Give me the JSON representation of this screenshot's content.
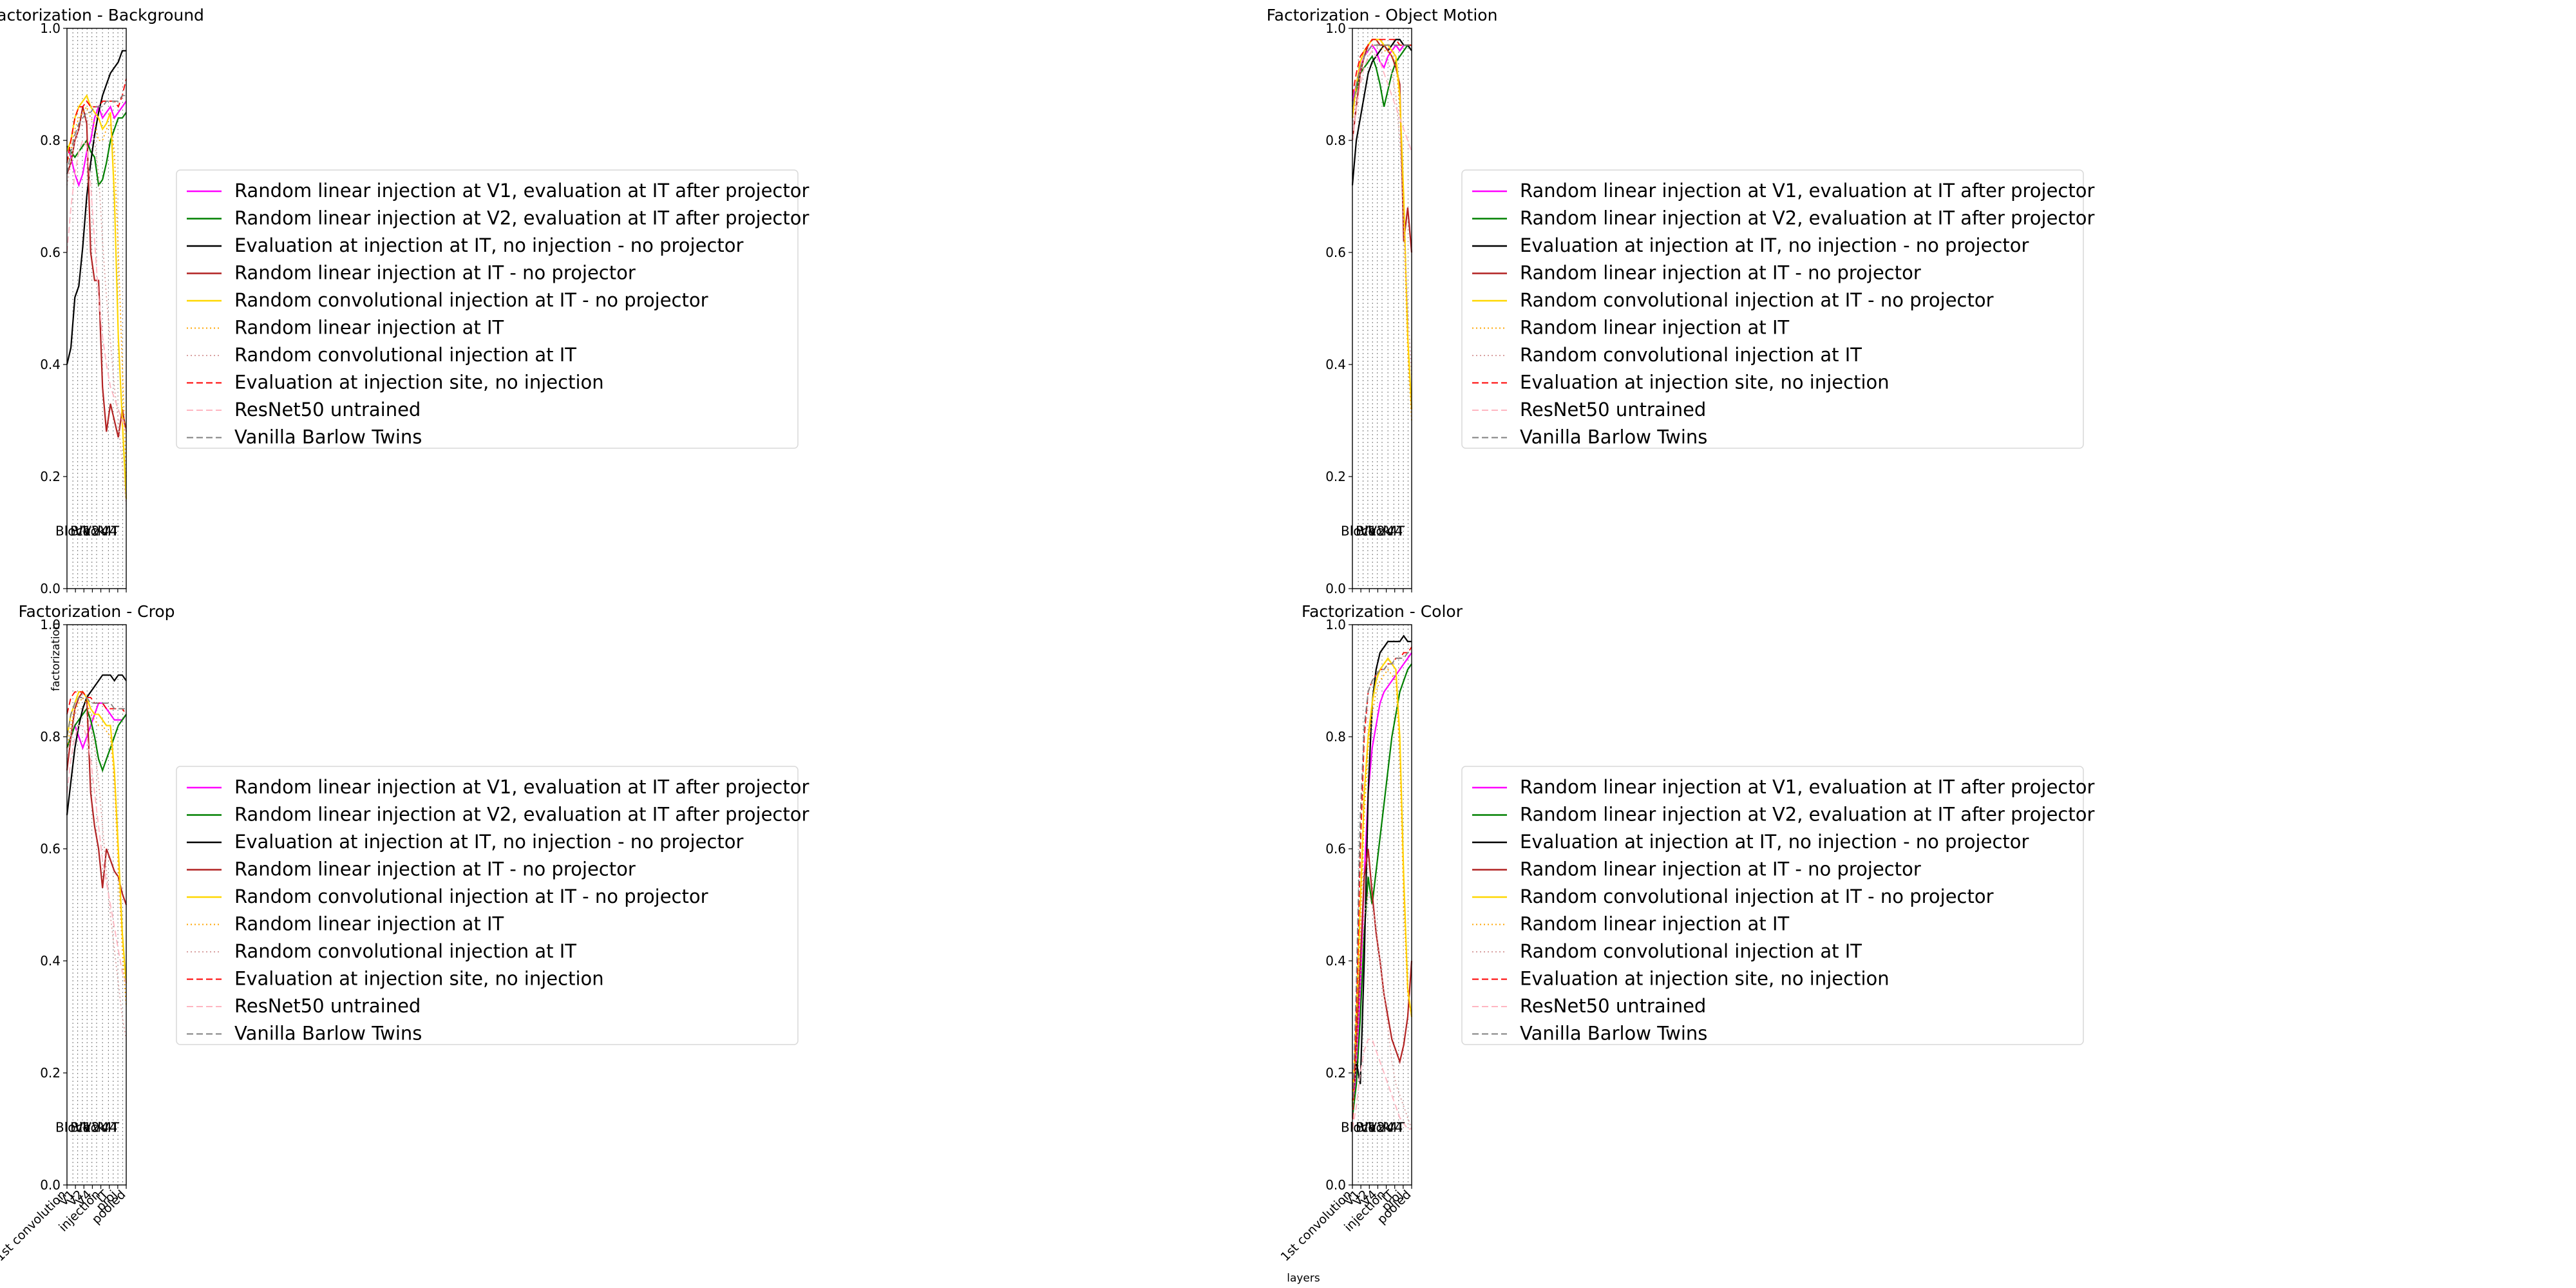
{
  "figure": {
    "xlabel": "layers",
    "ylabel": "factorization"
  },
  "legend_entries": [
    {
      "label": "Random linear injection at V1, evaluation at IT after projector",
      "color": "#ff00ff",
      "dash": "solid"
    },
    {
      "label": "Random linear injection at V2, evaluation at IT after projector",
      "color": "#008000",
      "dash": "solid"
    },
    {
      "label": "Evaluation at injection at IT, no injection - no projector",
      "color": "#000000",
      "dash": "solid"
    },
    {
      "label": "Random linear injection at IT - no projector",
      "color": "#b22222",
      "dash": "solid"
    },
    {
      "label": "Random convolutional injection at IT - no projector",
      "color": "#ffd700",
      "dash": "solid"
    },
    {
      "label": "Random linear injection at IT",
      "color": "#ffa500",
      "dash": "dotted"
    },
    {
      "label": "Random convolutional injection at IT",
      "color": "#d8a0a0",
      "dash": "dotted"
    },
    {
      "label": "Evaluation at injection site, no injection",
      "color": "#ff0000",
      "dash": "dashed"
    },
    {
      "label": "ResNet50 untrained",
      "color": "#ffb6c1",
      "dash": "dashed"
    },
    {
      "label": "Vanilla Barlow Twins",
      "color": "#808080",
      "dash": "dashed"
    }
  ],
  "chart_data": [
    {
      "type": "line",
      "title": "Factorization - Background",
      "ylim": [
        0,
        1
      ],
      "yticks": [
        "0.0",
        "0.2",
        "0.4",
        "0.6",
        "0.8",
        "1.0"
      ],
      "region_labels": [
        "Block",
        "V1",
        "V2",
        "V4",
        "IT"
      ],
      "xticklabels": [],
      "grid": "vertical dotted lines at layer boundaries",
      "legend_placement": "right",
      "series": [
        {
          "values": [
            0.79,
            0.77,
            0.74,
            0.72,
            0.74,
            0.78,
            0.8,
            0.84,
            0.86,
            0.84,
            0.85,
            0.86,
            0.84,
            0.85,
            0.86,
            0.87
          ]
        },
        {
          "values": [
            0.79,
            0.78,
            0.77,
            0.78,
            0.79,
            0.8,
            0.78,
            0.77,
            0.72,
            0.73,
            0.76,
            0.8,
            0.82,
            0.84,
            0.84,
            0.85
          ]
        },
        {
          "values": [
            0.4,
            0.43,
            0.52,
            0.54,
            0.61,
            0.7,
            0.76,
            0.81,
            0.85,
            0.88,
            0.9,
            0.92,
            0.93,
            0.94,
            0.96,
            0.96
          ]
        },
        {
          "values": [
            0.74,
            0.76,
            0.8,
            0.82,
            0.86,
            0.83,
            0.6,
            0.55,
            0.55,
            0.36,
            0.28,
            0.33,
            0.3,
            0.27,
            0.32,
            0.28
          ]
        },
        {
          "values": [
            0.78,
            0.8,
            0.84,
            0.86,
            0.87,
            0.88,
            0.86,
            0.85,
            0.84,
            0.82,
            0.83,
            0.85,
            0.7,
            0.45,
            0.3,
            0.16
          ]
        },
        {
          "values": [
            0.76,
            0.78,
            0.82,
            0.84,
            0.85,
            0.86,
            0.84,
            0.83,
            0.8,
            0.8,
            0.82,
            0.83,
            0.78,
            0.6,
            0.4,
            0.2
          ]
        },
        {
          "values": [
            0.72,
            0.76,
            0.8,
            0.82,
            0.83,
            0.84,
            0.82,
            0.8,
            0.74,
            0.62,
            0.52,
            0.44,
            0.36,
            0.3,
            0.22,
            0.15
          ]
        },
        {
          "values": [
            0.76,
            0.8,
            0.84,
            0.86,
            0.86,
            0.87,
            0.86,
            0.86,
            0.86,
            0.87,
            0.87,
            0.87,
            0.87,
            0.86,
            0.88,
            0.91
          ]
        },
        {
          "values": [
            0.6,
            0.68,
            0.74,
            0.78,
            0.8,
            0.79,
            0.72,
            0.62,
            0.52,
            0.45,
            0.4,
            0.36,
            0.34,
            0.32,
            0.3,
            0.28
          ]
        },
        {
          "values": [
            0.74,
            0.78,
            0.81,
            0.83,
            0.84,
            0.85,
            0.85,
            0.86,
            0.86,
            0.86,
            0.87,
            0.87,
            0.87,
            0.87,
            0.88,
            0.88
          ]
        }
      ]
    },
    {
      "type": "line",
      "title": "Factorization - Object Motion",
      "ylim": [
        0,
        1
      ],
      "yticks": [
        "0.0",
        "0.2",
        "0.4",
        "0.6",
        "0.8",
        "1.0"
      ],
      "region_labels": [
        "Block",
        "V1",
        "V2",
        "V4",
        "IT"
      ],
      "xticklabels": [],
      "grid": "vertical dotted lines at layer boundaries",
      "legend_placement": "right",
      "series": [
        {
          "values": [
            0.87,
            0.9,
            0.93,
            0.95,
            0.96,
            0.97,
            0.96,
            0.94,
            0.93,
            0.95,
            0.96,
            0.97,
            0.96,
            0.97,
            0.97,
            0.97
          ]
        },
        {
          "values": [
            0.86,
            0.89,
            0.92,
            0.93,
            0.94,
            0.95,
            0.93,
            0.9,
            0.86,
            0.89,
            0.92,
            0.94,
            0.95,
            0.96,
            0.97,
            0.97
          ]
        },
        {
          "values": [
            0.72,
            0.8,
            0.84,
            0.88,
            0.92,
            0.94,
            0.95,
            0.96,
            0.97,
            0.96,
            0.97,
            0.98,
            0.98,
            0.97,
            0.97,
            0.96
          ]
        },
        {
          "values": [
            0.8,
            0.86,
            0.92,
            0.95,
            0.97,
            0.98,
            0.98,
            0.97,
            0.97,
            0.96,
            0.95,
            0.93,
            0.9,
            0.62,
            0.68,
            0.6
          ]
        },
        {
          "values": [
            0.84,
            0.9,
            0.94,
            0.96,
            0.97,
            0.98,
            0.98,
            0.98,
            0.97,
            0.97,
            0.96,
            0.95,
            0.88,
            0.7,
            0.45,
            0.32
          ]
        },
        {
          "values": [
            0.85,
            0.9,
            0.94,
            0.96,
            0.97,
            0.97,
            0.97,
            0.97,
            0.96,
            0.96,
            0.95,
            0.94,
            0.86,
            0.66,
            0.42,
            0.3
          ]
        },
        {
          "values": [
            0.82,
            0.88,
            0.92,
            0.95,
            0.96,
            0.97,
            0.97,
            0.96,
            0.95,
            0.94,
            0.92,
            0.88,
            0.8,
            0.65,
            0.5,
            0.38
          ]
        },
        {
          "values": [
            0.88,
            0.92,
            0.95,
            0.96,
            0.97,
            0.98,
            0.98,
            0.98,
            0.98,
            0.98,
            0.98,
            0.98,
            0.97,
            0.97,
            0.97,
            0.97
          ]
        },
        {
          "values": [
            0.8,
            0.86,
            0.9,
            0.93,
            0.95,
            0.96,
            0.95,
            0.94,
            0.92,
            0.9,
            0.88,
            0.86,
            0.84,
            0.82,
            0.8,
            0.78
          ]
        },
        {
          "values": [
            0.86,
            0.9,
            0.93,
            0.95,
            0.96,
            0.97,
            0.97,
            0.97,
            0.97,
            0.97,
            0.97,
            0.97,
            0.97,
            0.97,
            0.97,
            0.97
          ]
        }
      ]
    },
    {
      "type": "line",
      "title": "Factorization - Crop",
      "ylim": [
        0,
        1
      ],
      "yticks": [
        "0.0",
        "0.2",
        "0.4",
        "0.6",
        "0.8",
        "1.0"
      ],
      "region_labels": [
        "Block",
        "V1",
        "V2",
        "V4",
        "IT"
      ],
      "xticklabels": [
        "1st convolution",
        "V1",
        "V2",
        "V4",
        "injection",
        "IT",
        "proj",
        "pooled"
      ],
      "grid": "vertical dotted lines at layer boundaries",
      "legend_placement": "right",
      "series": [
        {
          "values": [
            0.78,
            0.8,
            0.82,
            0.8,
            0.78,
            0.8,
            0.82,
            0.84,
            0.86,
            0.86,
            0.85,
            0.84,
            0.83,
            0.83,
            0.83,
            0.84
          ]
        },
        {
          "values": [
            0.78,
            0.8,
            0.82,
            0.83,
            0.84,
            0.85,
            0.83,
            0.8,
            0.76,
            0.74,
            0.76,
            0.78,
            0.8,
            0.82,
            0.83,
            0.84
          ]
        },
        {
          "values": [
            0.66,
            0.72,
            0.78,
            0.82,
            0.85,
            0.87,
            0.88,
            0.89,
            0.9,
            0.91,
            0.91,
            0.91,
            0.9,
            0.91,
            0.91,
            0.9
          ]
        },
        {
          "values": [
            0.74,
            0.8,
            0.85,
            0.87,
            0.88,
            0.87,
            0.7,
            0.64,
            0.6,
            0.53,
            0.6,
            0.58,
            0.56,
            0.55,
            0.52,
            0.5
          ]
        },
        {
          "values": [
            0.8,
            0.84,
            0.86,
            0.88,
            0.88,
            0.87,
            0.85,
            0.84,
            0.84,
            0.83,
            0.82,
            0.82,
            0.74,
            0.6,
            0.45,
            0.36
          ]
        },
        {
          "values": [
            0.78,
            0.82,
            0.85,
            0.86,
            0.87,
            0.86,
            0.84,
            0.83,
            0.82,
            0.82,
            0.81,
            0.8,
            0.72,
            0.56,
            0.42,
            0.32
          ]
        },
        {
          "values": [
            0.76,
            0.8,
            0.84,
            0.85,
            0.85,
            0.84,
            0.82,
            0.78,
            0.72,
            0.64,
            0.56,
            0.48,
            0.42,
            0.36,
            0.3,
            0.26
          ]
        },
        {
          "values": [
            0.84,
            0.87,
            0.88,
            0.88,
            0.88,
            0.87,
            0.87,
            0.86,
            0.86,
            0.86,
            0.85,
            0.85,
            0.85,
            0.85,
            0.85,
            0.84
          ]
        },
        {
          "values": [
            0.7,
            0.76,
            0.8,
            0.82,
            0.82,
            0.8,
            0.76,
            0.7,
            0.64,
            0.58,
            0.54,
            0.5,
            0.46,
            0.42,
            0.38,
            0.36
          ]
        },
        {
          "values": [
            0.8,
            0.84,
            0.86,
            0.87,
            0.87,
            0.87,
            0.86,
            0.86,
            0.86,
            0.86,
            0.86,
            0.86,
            0.85,
            0.85,
            0.85,
            0.85
          ]
        }
      ]
    },
    {
      "type": "line",
      "title": "Factorization - Color",
      "ylim": [
        0,
        1
      ],
      "yticks": [
        "0.0",
        "0.2",
        "0.4",
        "0.6",
        "0.8",
        "1.0"
      ],
      "region_labels": [
        "Block",
        "V1",
        "V2",
        "V4",
        "IT"
      ],
      "xticklabels": [
        "1st convolution",
        "V1",
        "V2",
        "V4",
        "injection",
        "IT",
        "proj",
        "pooled"
      ],
      "grid": "vertical dotted lines at layer boundaries",
      "legend_placement": "right",
      "series": [
        {
          "values": [
            0.12,
            0.2,
            0.35,
            0.55,
            0.7,
            0.78,
            0.82,
            0.86,
            0.88,
            0.89,
            0.9,
            0.91,
            0.92,
            0.93,
            0.94,
            0.95
          ]
        },
        {
          "values": [
            0.12,
            0.18,
            0.3,
            0.45,
            0.55,
            0.5,
            0.56,
            0.62,
            0.68,
            0.74,
            0.8,
            0.84,
            0.88,
            0.9,
            0.92,
            0.93
          ]
        },
        {
          "values": [
            0.15,
            0.22,
            0.18,
            0.4,
            0.7,
            0.86,
            0.92,
            0.95,
            0.96,
            0.97,
            0.97,
            0.97,
            0.97,
            0.98,
            0.97,
            0.97
          ]
        },
        {
          "values": [
            0.14,
            0.25,
            0.4,
            0.55,
            0.6,
            0.52,
            0.45,
            0.4,
            0.34,
            0.3,
            0.26,
            0.24,
            0.22,
            0.25,
            0.3,
            0.4
          ]
        },
        {
          "values": [
            0.14,
            0.3,
            0.5,
            0.7,
            0.8,
            0.86,
            0.9,
            0.92,
            0.93,
            0.94,
            0.93,
            0.92,
            0.8,
            0.55,
            0.35,
            0.3
          ]
        },
        {
          "values": [
            0.12,
            0.28,
            0.46,
            0.66,
            0.78,
            0.84,
            0.88,
            0.9,
            0.91,
            0.92,
            0.91,
            0.9,
            0.76,
            0.5,
            0.34,
            0.3
          ]
        },
        {
          "values": [
            0.12,
            0.22,
            0.36,
            0.48,
            0.52,
            0.5,
            0.46,
            0.4,
            0.34,
            0.28,
            0.22,
            0.18,
            0.16,
            0.14,
            0.12,
            0.1
          ]
        },
        {
          "values": [
            0.1,
            0.3,
            0.6,
            0.8,
            0.88,
            0.9,
            0.91,
            0.92,
            0.92,
            0.93,
            0.93,
            0.94,
            0.94,
            0.95,
            0.95,
            0.96
          ]
        },
        {
          "values": [
            0.1,
            0.14,
            0.2,
            0.24,
            0.26,
            0.26,
            0.24,
            0.22,
            0.2,
            0.18,
            0.16,
            0.14,
            0.12,
            0.11,
            0.1,
            0.1
          ]
        },
        {
          "values": [
            0.12,
            0.36,
            0.66,
            0.82,
            0.88,
            0.9,
            0.91,
            0.92,
            0.92,
            0.93,
            0.93,
            0.94,
            0.94,
            0.94,
            0.95,
            0.95
          ]
        }
      ]
    }
  ]
}
